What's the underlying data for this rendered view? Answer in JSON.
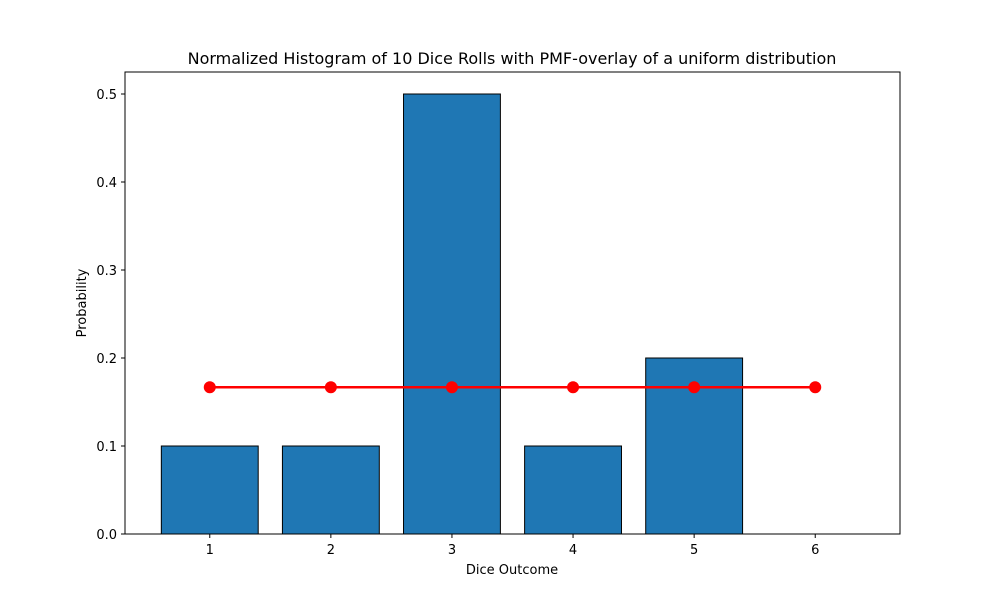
{
  "chart_data": {
    "type": "bar",
    "title": "Normalized Histogram of 10 Dice Rolls with PMF-overlay of a uniform distribution",
    "xlabel": "Dice Outcome",
    "ylabel": "Probability",
    "categories": [
      "1",
      "2",
      "3",
      "4",
      "5",
      "6"
    ],
    "x": [
      1,
      2,
      3,
      4,
      5,
      6
    ],
    "values": [
      0.1,
      0.1,
      0.5,
      0.1,
      0.2,
      0.0
    ],
    "overlay": {
      "type": "line",
      "x": [
        1,
        2,
        3,
        4,
        5,
        6
      ],
      "values": [
        0.1667,
        0.1667,
        0.1667,
        0.1667,
        0.1667,
        0.1667
      ],
      "color": "#ff0000"
    },
    "yticks": [
      "0.0",
      "0.1",
      "0.2",
      "0.3",
      "0.4",
      "0.5"
    ],
    "ylim": [
      0,
      0.525
    ],
    "xlim": [
      0.3,
      6.7
    ],
    "bar_color": "#1f77b4",
    "edge_color": "#000000",
    "grid": false,
    "legend": false
  }
}
